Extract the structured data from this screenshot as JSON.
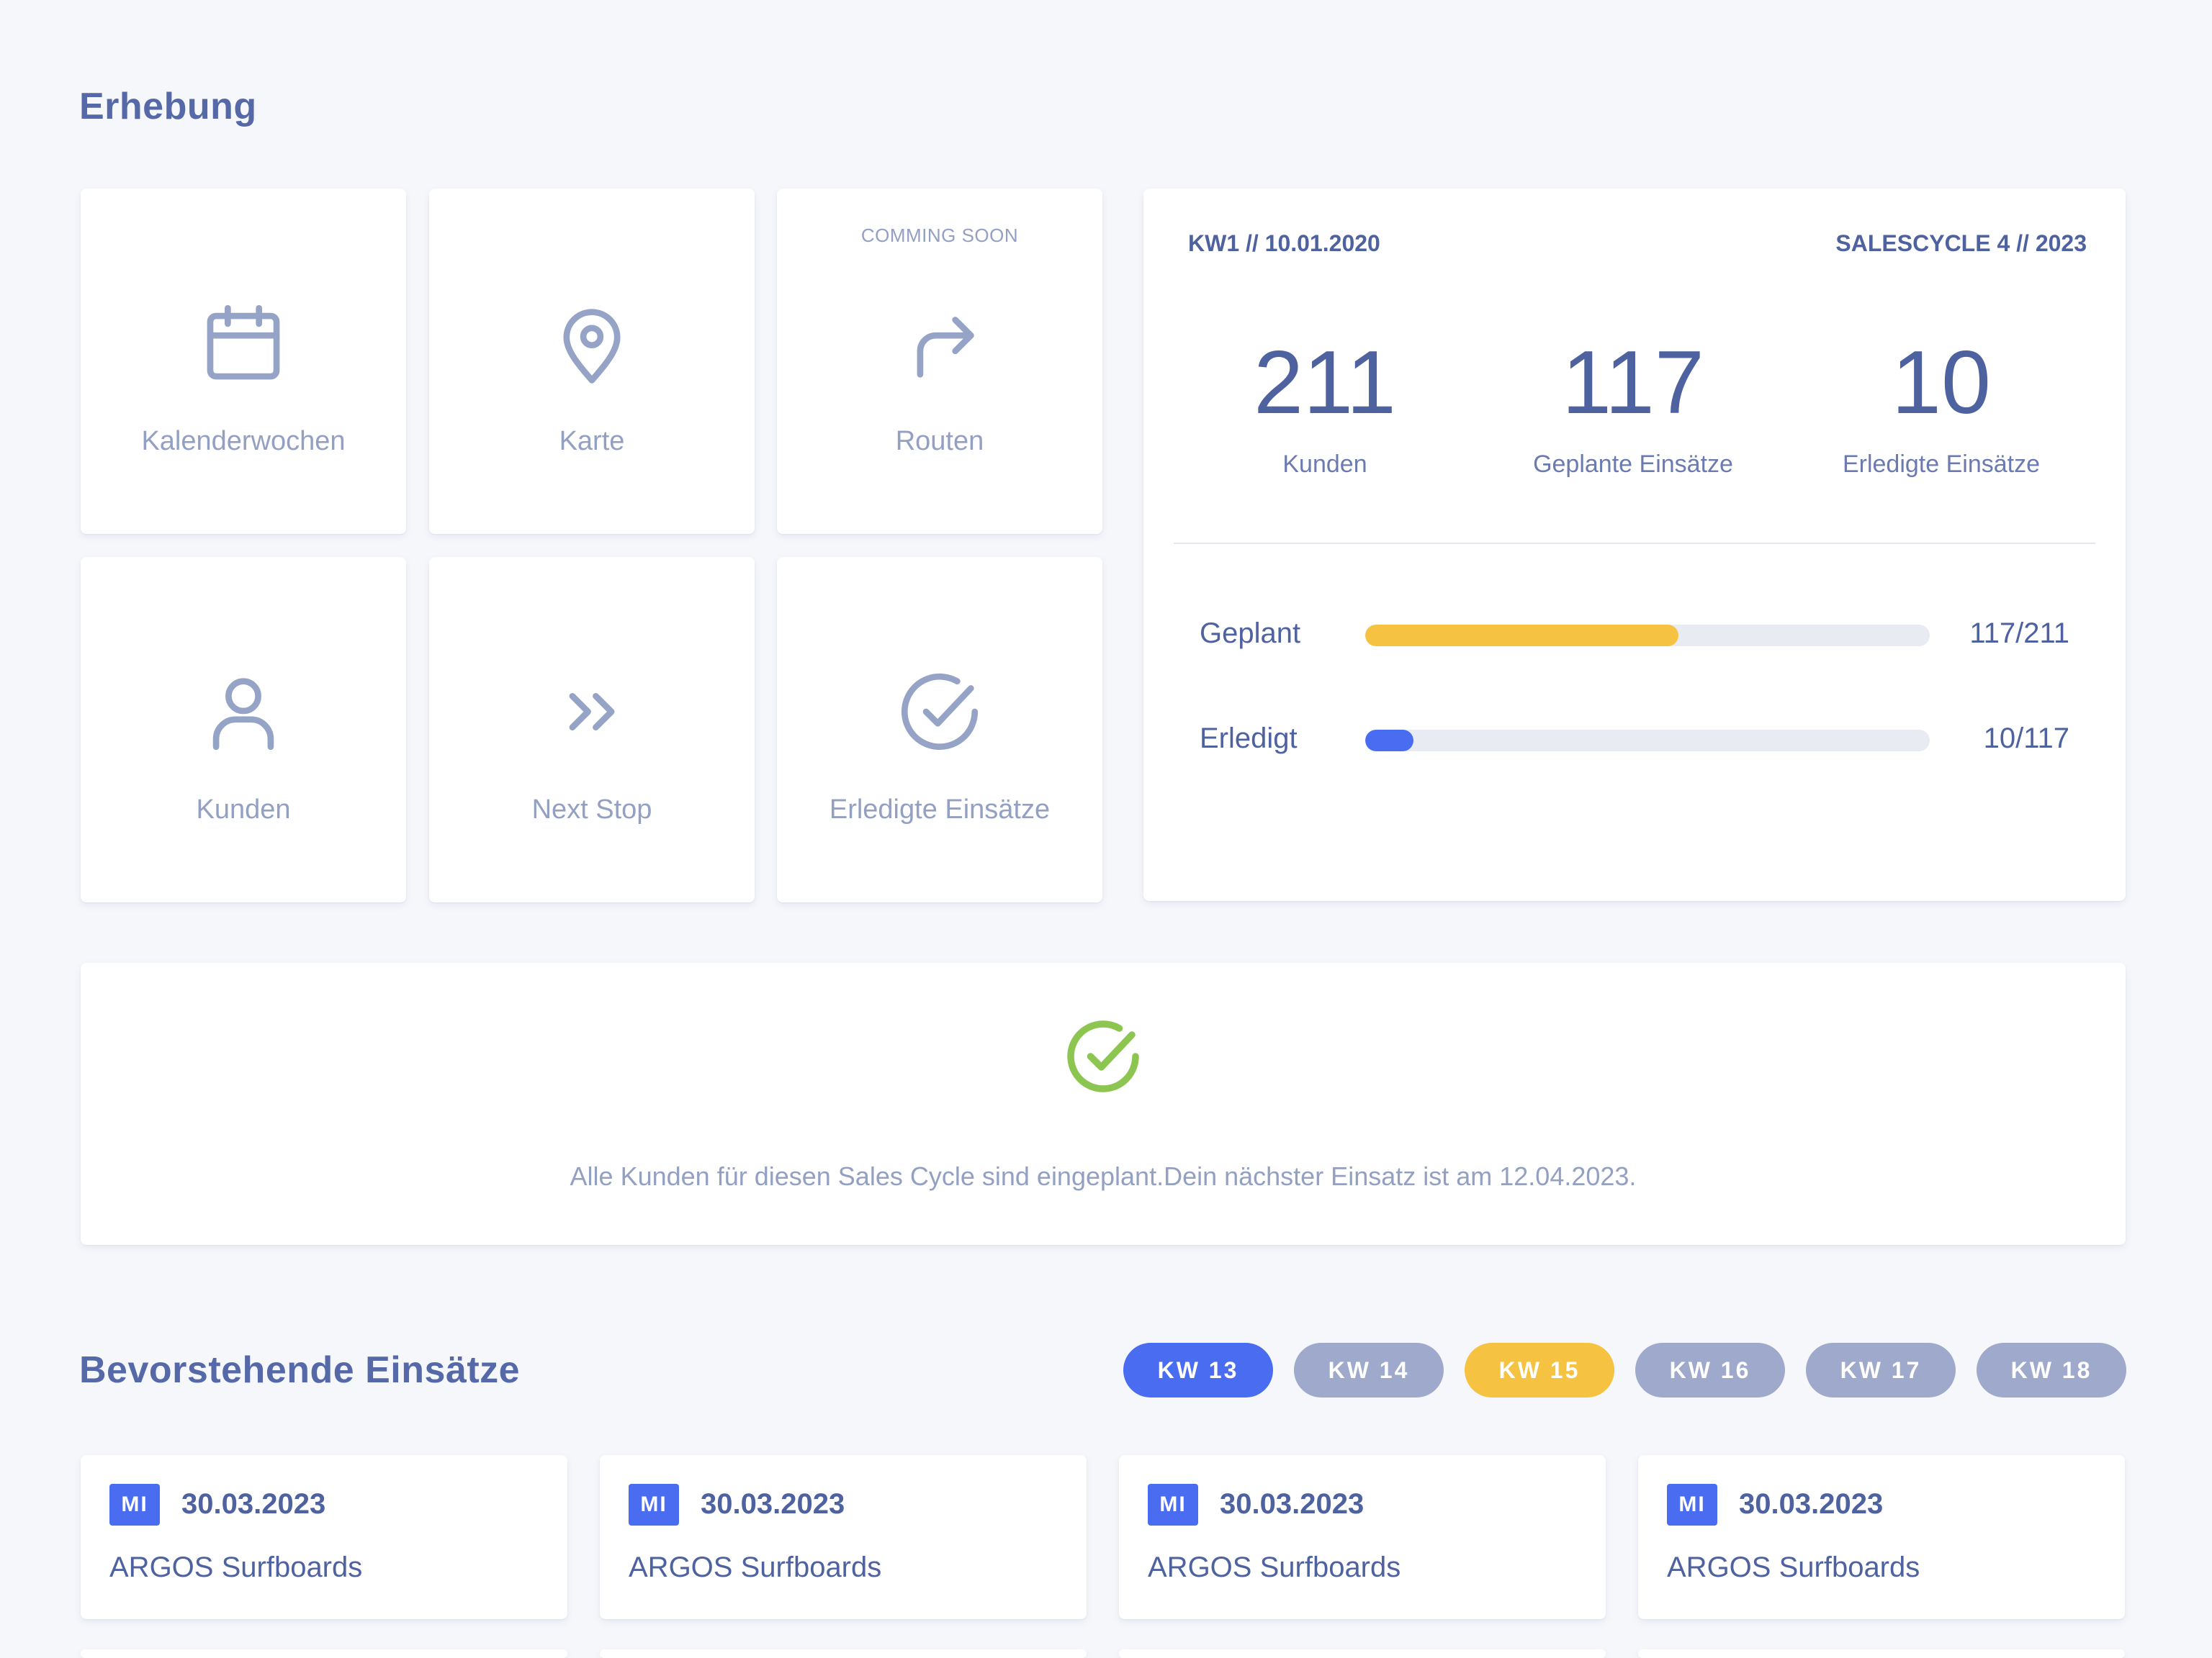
{
  "page": {
    "section_title": "Erhebung",
    "upcoming_title": "Bevorstehende Einsätze"
  },
  "tiles": [
    {
      "label": "Kalenderwochen",
      "icon": "calendar-icon"
    },
    {
      "label": "Karte",
      "icon": "map-pin-icon"
    },
    {
      "label": "Routen",
      "icon": "route-arrow-icon",
      "badge": "COMMING SOON"
    },
    {
      "label": "Kunden",
      "icon": "user-icon"
    },
    {
      "label": "Next Stop",
      "icon": "double-chevron-right-icon"
    },
    {
      "label": "Erledigte Einsätze",
      "icon": "check-circle-icon"
    }
  ],
  "stats": {
    "week_info": "KW1 // 10.01.2020",
    "cycle_info": "SALESCYCLE 4 // 2023",
    "metrics": [
      {
        "value": "211",
        "label": "Kunden"
      },
      {
        "value": "117",
        "label": "Geplante Einsätze"
      },
      {
        "value": "10",
        "label": "Erledigte Einsätze"
      }
    ],
    "progress": [
      {
        "label": "Geplant",
        "value_text": "117/211",
        "fraction": 0.5545,
        "color": "#f5c242"
      },
      {
        "label": "Erledigt",
        "value_text": "10/117",
        "fraction": 0.0855,
        "color": "#4a6cf0"
      }
    ]
  },
  "banner": {
    "icon": "check-circle-icon",
    "icon_color": "#8cc54f",
    "message": "Alle Kunden für diesen Sales Cycle sind eingeplant.Dein nächster Einsatz ist am 12.04.2023."
  },
  "week_filter": [
    {
      "label": "KW 13",
      "state": "active",
      "color": "#4a6cf0"
    },
    {
      "label": "KW 14",
      "state": "inactive",
      "color": "#9ea9cc"
    },
    {
      "label": "KW 15",
      "state": "highlight",
      "color": "#f5c242"
    },
    {
      "label": "KW 16",
      "state": "inactive",
      "color": "#9ea9cc"
    },
    {
      "label": "KW 17",
      "state": "inactive",
      "color": "#9ea9cc"
    },
    {
      "label": "KW 18",
      "state": "inactive",
      "color": "#9ea9cc"
    }
  ],
  "appointments": [
    {
      "day": "MI",
      "date": "30.03.2023",
      "customer": "ARGOS Surfboards"
    },
    {
      "day": "MI",
      "date": "30.03.2023",
      "customer": "ARGOS Surfboards"
    },
    {
      "day": "MI",
      "date": "30.03.2023",
      "customer": "ARGOS Surfboards"
    },
    {
      "day": "MI",
      "date": "30.03.2023",
      "customer": "ARGOS Surfboards"
    }
  ],
  "colors": {
    "primary_text": "#4e62a0",
    "muted_text": "#93a0c2",
    "accent_blue": "#4a6cf0",
    "accent_yellow": "#f5c242",
    "accent_green": "#8cc54f",
    "background": "#f6f7fb"
  }
}
